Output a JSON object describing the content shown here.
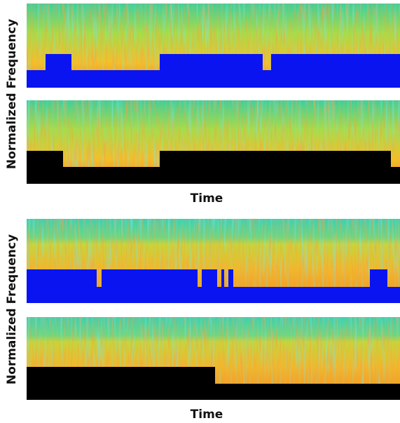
{
  "figures": [
    {
      "y_label": "Normalized Frequency",
      "x_label": "Time"
    },
    {
      "y_label": "Normalized Frequency",
      "x_label": "Time"
    }
  ]
}
